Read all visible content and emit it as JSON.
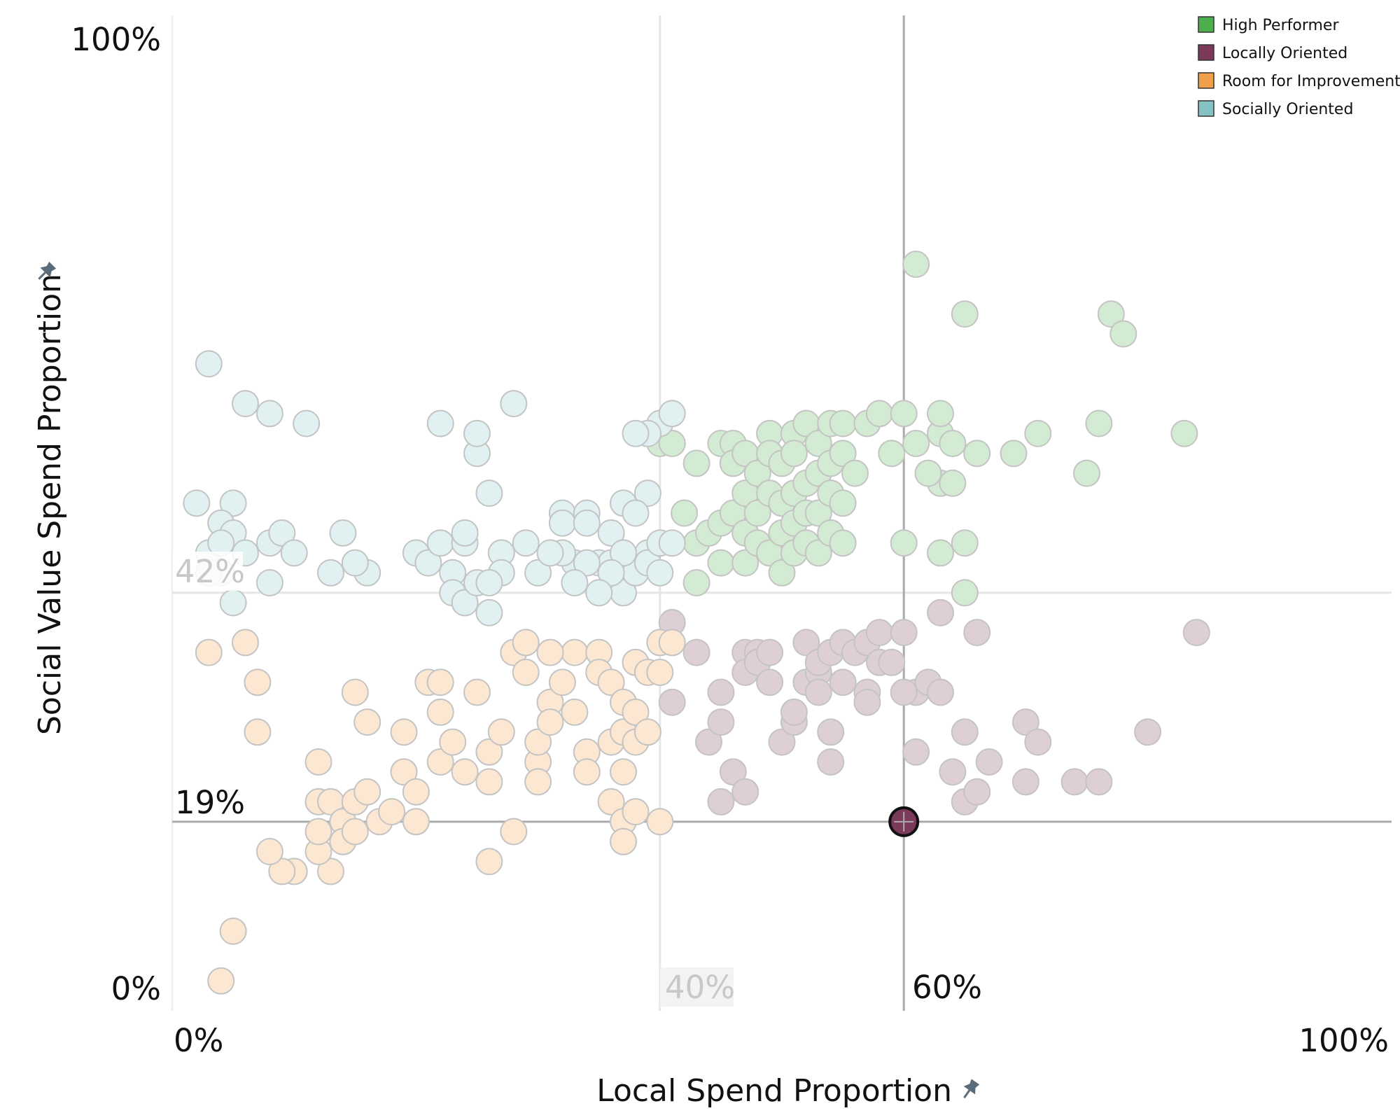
{
  "chart_data": {
    "type": "scatter",
    "xlabel": "Local Spend Proportion",
    "ylabel": "Social Value Spend Proportion",
    "xlim": [
      0,
      100
    ],
    "ylim": [
      0,
      100
    ],
    "x_ticks": [
      "0%",
      "100%"
    ],
    "y_ticks": [
      "0%",
      "100%"
    ],
    "grid": false,
    "legend_position": "top-right",
    "reference_lines": {
      "x_average": {
        "value": 40,
        "label": "40%"
      },
      "x_selected": {
        "value": 60,
        "label": "60%"
      },
      "y_average": {
        "value": 42,
        "label": "42%"
      },
      "y_selected": {
        "value": 19,
        "label": "19%"
      }
    },
    "highlighted_point": {
      "x": 60,
      "y": 19,
      "series": "Locally Oriented"
    },
    "legend": [
      {
        "name": "High Performer",
        "color": "#4cae4c"
      },
      {
        "name": "Locally Oriented",
        "color": "#7b3a5a"
      },
      {
        "name": "Room for Improvement",
        "color": "#f0a04a"
      },
      {
        "name": "Socially Oriented",
        "color": "#86c2c4"
      }
    ],
    "series": [
      {
        "name": "High Performer",
        "color": "#4cae4c",
        "points": [
          [
            40,
            57
          ],
          [
            41,
            57
          ],
          [
            42,
            50
          ],
          [
            43,
            55
          ],
          [
            43,
            47
          ],
          [
            43,
            43
          ],
          [
            44,
            48
          ],
          [
            45,
            57
          ],
          [
            45,
            49
          ],
          [
            45,
            45
          ],
          [
            46,
            57
          ],
          [
            46,
            55
          ],
          [
            46,
            50
          ],
          [
            47,
            56
          ],
          [
            47,
            52
          ],
          [
            47,
            48
          ],
          [
            47,
            45
          ],
          [
            48,
            54
          ],
          [
            48,
            50
          ],
          [
            48,
            47
          ],
          [
            49,
            58
          ],
          [
            49,
            56
          ],
          [
            49,
            52
          ],
          [
            49,
            46
          ],
          [
            50,
            55
          ],
          [
            50,
            51
          ],
          [
            50,
            48
          ],
          [
            50,
            44
          ],
          [
            51,
            58
          ],
          [
            51,
            56
          ],
          [
            51,
            52
          ],
          [
            51,
            49
          ],
          [
            51,
            46
          ],
          [
            52,
            59
          ],
          [
            52,
            53
          ],
          [
            52,
            50
          ],
          [
            52,
            47
          ],
          [
            53,
            57
          ],
          [
            53,
            54
          ],
          [
            53,
            50
          ],
          [
            53,
            46
          ],
          [
            54,
            59
          ],
          [
            54,
            55
          ],
          [
            54,
            52
          ],
          [
            54,
            48
          ],
          [
            55,
            59
          ],
          [
            55,
            56
          ],
          [
            55,
            51
          ],
          [
            55,
            47
          ],
          [
            56,
            54
          ],
          [
            57,
            59
          ],
          [
            58,
            60
          ],
          [
            59,
            56
          ],
          [
            60,
            60
          ],
          [
            60,
            47
          ],
          [
            61,
            57
          ],
          [
            61,
            75
          ],
          [
            63,
            58
          ],
          [
            63,
            60
          ],
          [
            63,
            53
          ],
          [
            63,
            46
          ],
          [
            64,
            57
          ],
          [
            64,
            53
          ],
          [
            65,
            70
          ],
          [
            65,
            47
          ],
          [
            65,
            42
          ],
          [
            66,
            56
          ],
          [
            69,
            56
          ],
          [
            71,
            58
          ],
          [
            75,
            54
          ],
          [
            77,
            70
          ],
          [
            78,
            68
          ],
          [
            83,
            58
          ],
          [
            76,
            59
          ],
          [
            62,
            54
          ]
        ]
      },
      {
        "name": "Locally Oriented",
        "color": "#7b3a5a",
        "points": [
          [
            41,
            39
          ],
          [
            41,
            31
          ],
          [
            43,
            36
          ],
          [
            44,
            27
          ],
          [
            45,
            32
          ],
          [
            45,
            29
          ],
          [
            46,
            24
          ],
          [
            47,
            36
          ],
          [
            47,
            34
          ],
          [
            48,
            36
          ],
          [
            48,
            35
          ],
          [
            49,
            36
          ],
          [
            49,
            33
          ],
          [
            50,
            27
          ],
          [
            51,
            29
          ],
          [
            51,
            30
          ],
          [
            52,
            37
          ],
          [
            52,
            33
          ],
          [
            53,
            34
          ],
          [
            53,
            35
          ],
          [
            53,
            32
          ],
          [
            54,
            36
          ],
          [
            54,
            28
          ],
          [
            54,
            25
          ],
          [
            55,
            33
          ],
          [
            55,
            37
          ],
          [
            56,
            36
          ],
          [
            57,
            37
          ],
          [
            57,
            32
          ],
          [
            58,
            35
          ],
          [
            58,
            38
          ],
          [
            59,
            35
          ],
          [
            60,
            38
          ],
          [
            61,
            32
          ],
          [
            61,
            26
          ],
          [
            62,
            33
          ],
          [
            63,
            32
          ],
          [
            64,
            24
          ],
          [
            65,
            28
          ],
          [
            65,
            21
          ],
          [
            66,
            38
          ],
          [
            67,
            25
          ],
          [
            70,
            23
          ],
          [
            70,
            29
          ],
          [
            71,
            27
          ],
          [
            74,
            23
          ],
          [
            76,
            23
          ],
          [
            80,
            28
          ],
          [
            84,
            38
          ],
          [
            45,
            21
          ],
          [
            47,
            22
          ],
          [
            57,
            31
          ],
          [
            60,
            32
          ],
          [
            66,
            22
          ],
          [
            63,
            40
          ]
        ]
      },
      {
        "name": "Room for Improvement",
        "color": "#f0a04a",
        "points": [
          [
            3,
            36
          ],
          [
            6,
            37
          ],
          [
            7,
            33
          ],
          [
            7,
            28
          ],
          [
            12,
            25
          ],
          [
            12,
            21
          ],
          [
            13,
            21
          ],
          [
            14,
            19
          ],
          [
            14,
            17
          ],
          [
            15,
            18
          ],
          [
            15,
            21
          ],
          [
            15,
            32
          ],
          [
            16,
            29
          ],
          [
            16,
            22
          ],
          [
            17,
            19
          ],
          [
            18,
            20
          ],
          [
            19,
            24
          ],
          [
            19,
            28
          ],
          [
            20,
            19
          ],
          [
            20,
            22
          ],
          [
            21,
            33
          ],
          [
            22,
            30
          ],
          [
            22,
            33
          ],
          [
            22,
            25
          ],
          [
            23,
            27
          ],
          [
            24,
            24
          ],
          [
            25,
            32
          ],
          [
            26,
            26
          ],
          [
            26,
            23
          ],
          [
            27,
            28
          ],
          [
            28,
            36
          ],
          [
            29,
            34
          ],
          [
            30,
            25
          ],
          [
            30,
            27
          ],
          [
            31,
            31
          ],
          [
            31,
            29
          ],
          [
            32,
            33
          ],
          [
            33,
            36
          ],
          [
            33,
            30
          ],
          [
            34,
            26
          ],
          [
            34,
            24
          ],
          [
            35,
            36
          ],
          [
            35,
            34
          ],
          [
            36,
            33
          ],
          [
            36,
            27
          ],
          [
            37,
            31
          ],
          [
            37,
            28
          ],
          [
            37,
            24
          ],
          [
            38,
            35
          ],
          [
            38,
            30
          ],
          [
            38,
            27
          ],
          [
            39,
            28
          ],
          [
            39,
            34
          ],
          [
            40,
            34
          ],
          [
            40,
            37
          ],
          [
            41,
            37
          ],
          [
            36,
            21
          ],
          [
            37,
            19
          ],
          [
            37,
            17
          ],
          [
            38,
            20
          ],
          [
            40,
            19
          ],
          [
            28,
            18
          ],
          [
            26,
            15
          ],
          [
            13,
            14
          ],
          [
            12,
            16
          ],
          [
            10,
            14
          ],
          [
            9,
            14
          ],
          [
            8,
            16
          ],
          [
            5,
            8
          ],
          [
            4,
            3
          ],
          [
            12,
            18
          ],
          [
            29,
            37
          ],
          [
            31,
            36
          ],
          [
            30,
            23
          ]
        ]
      },
      {
        "name": "Socially Oriented",
        "color": "#86c2c4",
        "points": [
          [
            3,
            65
          ],
          [
            6,
            61
          ],
          [
            8,
            60
          ],
          [
            5,
            51
          ],
          [
            4,
            49
          ],
          [
            5,
            48
          ],
          [
            6,
            46
          ],
          [
            3,
            46
          ],
          [
            2,
            51
          ],
          [
            4,
            47
          ],
          [
            8,
            47
          ],
          [
            9,
            48
          ],
          [
            10,
            46
          ],
          [
            4,
            44
          ],
          [
            5,
            41
          ],
          [
            8,
            43
          ],
          [
            13,
            44
          ],
          [
            16,
            44
          ],
          [
            20,
            46
          ],
          [
            21,
            45
          ],
          [
            22,
            59
          ],
          [
            22,
            47
          ],
          [
            23,
            44
          ],
          [
            24,
            47
          ],
          [
            24,
            48
          ],
          [
            25,
            56
          ],
          [
            26,
            40
          ],
          [
            27,
            46
          ],
          [
            28,
            61
          ],
          [
            30,
            44
          ],
          [
            32,
            50
          ],
          [
            32,
            49
          ],
          [
            33,
            45
          ],
          [
            34,
            50
          ],
          [
            34,
            49
          ],
          [
            35,
            45
          ],
          [
            36,
            48
          ],
          [
            36,
            45
          ],
          [
            37,
            42
          ],
          [
            37,
            51
          ],
          [
            38,
            45
          ],
          [
            38,
            44
          ],
          [
            39,
            46
          ],
          [
            39,
            45
          ],
          [
            40,
            47
          ],
          [
            40,
            44
          ],
          [
            41,
            47
          ],
          [
            40,
            59
          ],
          [
            41,
            60
          ],
          [
            39,
            58
          ],
          [
            39,
            52
          ],
          [
            38,
            50
          ],
          [
            37,
            46
          ],
          [
            36,
            44
          ],
          [
            35,
            42
          ],
          [
            34,
            45
          ],
          [
            33,
            43
          ],
          [
            32,
            46
          ],
          [
            31,
            46
          ],
          [
            26,
            52
          ],
          [
            29,
            47
          ],
          [
            27,
            44
          ],
          [
            23,
            42
          ],
          [
            24,
            41
          ],
          [
            25,
            43
          ],
          [
            26,
            43
          ],
          [
            15,
            45
          ],
          [
            14,
            48
          ],
          [
            25,
            58
          ],
          [
            3,
            44
          ],
          [
            11,
            59
          ],
          [
            38,
            58
          ]
        ]
      }
    ]
  }
}
